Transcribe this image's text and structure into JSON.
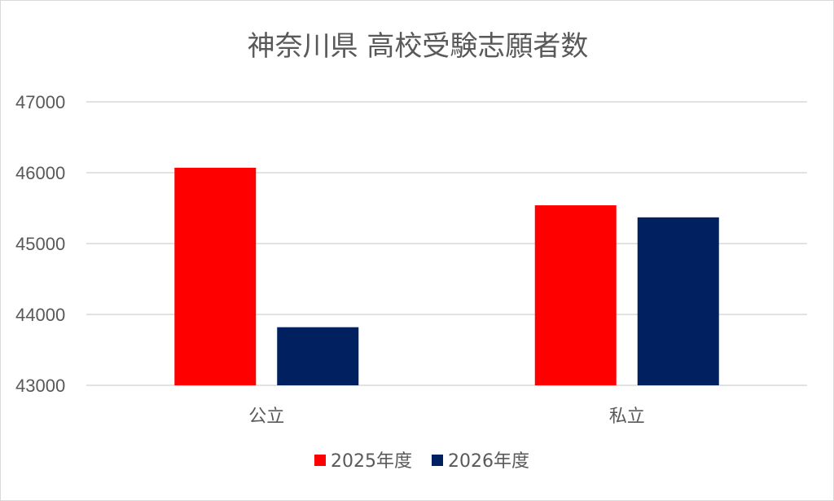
{
  "chart_data": {
    "type": "bar",
    "title": "神奈川県 高校受験志願者数",
    "categories": [
      "公立",
      "私立"
    ],
    "series": [
      {
        "name": "2025年度",
        "color": "#ff0000",
        "values": [
          46070,
          45540
        ]
      },
      {
        "name": "2026年度",
        "color": "#002060",
        "values": [
          43820,
          45370
        ]
      }
    ],
    "ylim": [
      43000,
      47000
    ],
    "yticks": [
      43000,
      44000,
      45000,
      46000,
      47000
    ],
    "grid": true,
    "legend_position": "bottom",
    "colors": {
      "gridline": "#d9d9d9",
      "text": "#595959",
      "border": "#d9d9d9"
    }
  }
}
